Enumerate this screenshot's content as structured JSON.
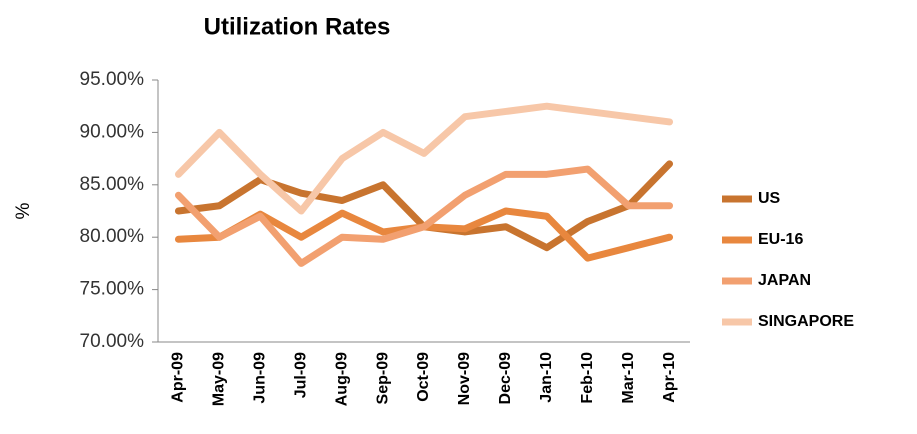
{
  "chart_data": {
    "type": "line",
    "title": "Utilization Rates",
    "y_label": "%",
    "categories": [
      "Apr-09",
      "May-09",
      "Jun-09",
      "Jul-09",
      "Aug-09",
      "Sep-09",
      "Oct-09",
      "Nov-09",
      "Dec-09",
      "Jan-10",
      "Feb-10",
      "Mar-10",
      "Apr-10"
    ],
    "series": [
      {
        "name": "US",
        "color": "#c8742f",
        "values": [
          82.5,
          83,
          85.5,
          84.2,
          83.5,
          85,
          81,
          80.5,
          81,
          79,
          81.5,
          83,
          87
        ]
      },
      {
        "name": "EU-16",
        "color": "#e8873e",
        "values": [
          79.8,
          80,
          82.2,
          80,
          82.3,
          80.5,
          81,
          80.8,
          82.5,
          82,
          78,
          79,
          80
        ]
      },
      {
        "name": "JAPAN",
        "color": "#f2a070",
        "values": [
          84,
          80,
          82,
          77.5,
          80,
          79.8,
          81,
          84,
          86,
          86,
          86.5,
          83,
          83
        ]
      },
      {
        "name": "SINGAPORE",
        "color": "#f7c7a8",
        "values": [
          86,
          90,
          86,
          82.5,
          87.5,
          90,
          88,
          91.5,
          92,
          92.5,
          92,
          91.5,
          91
        ]
      }
    ],
    "ylim": [
      70,
      95
    ],
    "yticks": [
      {
        "value": 70,
        "label": "70.00%"
      },
      {
        "value": 75,
        "label": "75.00%"
      },
      {
        "value": 80,
        "label": "80.00%"
      },
      {
        "value": 85,
        "label": "85.00%"
      },
      {
        "value": 90,
        "label": "90.00%"
      },
      {
        "value": 95,
        "label": "95.00%"
      }
    ],
    "grid": false,
    "legend": "right"
  }
}
